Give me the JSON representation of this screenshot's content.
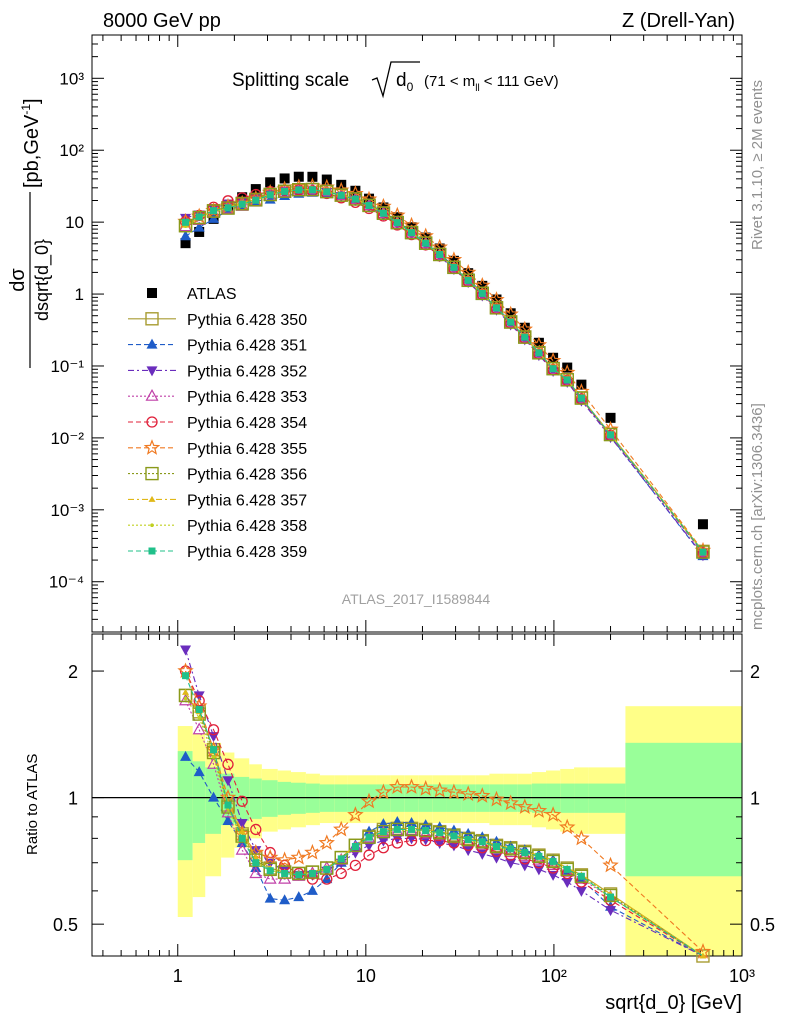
{
  "header": {
    "left": "8000 GeV pp",
    "right": "Z (Drell-Yan)"
  },
  "side": {
    "rivet": "Rivet 3.1.10, ≥ 2M events",
    "site": "mcplots.cern.ch [arXiv:1306.3436]"
  },
  "plot_title": {
    "main": "Splitting scale",
    "var": "d",
    "var_sub": "0",
    "cut_open": "(71 < m",
    "cut_sub": "ll",
    "cut_close": "< 111 GeV)"
  },
  "watermark": "ATLAS_2017_I1589844",
  "ylabel_top": {
    "num": "dσ",
    "den": "dsqrt{d_0}",
    "unit": "[pb,GeV",
    "unit_sup": "-1",
    "unit_close": "]"
  },
  "ylabel_bottom": "Ratio to ATLAS",
  "xlabel": "sqrt{d_0} [GeV]",
  "colors": {
    "data": "#000000",
    "band_inner": "#99ff99",
    "band_outer": "#ffff88"
  },
  "chart_data": [
    {
      "type": "scatter",
      "panel": "main",
      "x_scale": "log",
      "y_scale": "log",
      "xlim": [
        0.35,
        1000
      ],
      "ylim": [
        2e-05,
        4000
      ],
      "x_ticks": [
        "1",
        "10",
        "10²",
        "10³"
      ],
      "y_ticks": [
        "10⁻⁴",
        "10⁻³",
        "10⁻²",
        "10⁻¹",
        "1",
        "10",
        "10²",
        "10³"
      ],
      "legend_position": "center-left",
      "x": [
        1.1,
        1.3,
        1.55,
        1.85,
        2.2,
        2.6,
        3.1,
        3.7,
        4.4,
        5.2,
        6.2,
        7.4,
        8.8,
        10.4,
        12.4,
        14.7,
        17.5,
        20.8,
        24.7,
        29.4,
        35,
        41.6,
        49.5,
        58.9,
        70,
        83.2,
        99,
        117.7,
        140,
        200,
        620
      ],
      "series": [
        {
          "name": "ATLAS",
          "marker": "filled-square",
          "color": "#000000",
          "values": [
            5.1,
            7.3,
            11.1,
            16.5,
            22.2,
            28.8,
            35.8,
            40.5,
            42.8,
            42.7,
            39.1,
            33.0,
            27.3,
            21.2,
            16.0,
            11.7,
            8.5,
            6.1,
            4.3,
            2.9,
            1.95,
            1.3,
            0.84,
            0.54,
            0.34,
            0.21,
            0.13,
            0.095,
            0.055,
            0.019,
            0.00063
          ]
        },
        {
          "name": "Pythia 6.428 350",
          "marker": "open-square",
          "style": "solid",
          "color": "#a89c32",
          "ratio": [
            1.75,
            1.6,
            1.3,
            0.96,
            0.82,
            0.72,
            0.68,
            0.665,
            0.66,
            0.665,
            0.68,
            0.72,
            0.77,
            0.81,
            0.84,
            0.845,
            0.845,
            0.84,
            0.83,
            0.815,
            0.8,
            0.79,
            0.77,
            0.76,
            0.745,
            0.73,
            0.71,
            0.68,
            0.655,
            0.59,
            0.42
          ]
        },
        {
          "name": "Pythia 6.428 351",
          "marker": "filled-triangle-up",
          "style": "dashed",
          "color": "#1f5cc8",
          "ratio": [
            1.25,
            1.15,
            1.0,
            0.88,
            0.78,
            0.68,
            0.575,
            0.57,
            0.58,
            0.6,
            0.64,
            0.7,
            0.77,
            0.83,
            0.865,
            0.875,
            0.87,
            0.86,
            0.85,
            0.835,
            0.82,
            0.805,
            0.785,
            0.765,
            0.75,
            0.73,
            0.71,
            0.67,
            0.64,
            0.55,
            0.36
          ]
        },
        {
          "name": "Pythia 6.428 352",
          "marker": "filled-triangle-down",
          "style": "dash-dot",
          "color": "#6a2dbd",
          "ratio": [
            2.25,
            1.75,
            1.4,
            1.1,
            0.87,
            0.75,
            0.7,
            0.67,
            0.655,
            0.655,
            0.67,
            0.7,
            0.74,
            0.77,
            0.79,
            0.8,
            0.8,
            0.795,
            0.78,
            0.77,
            0.75,
            0.735,
            0.72,
            0.7,
            0.69,
            0.675,
            0.655,
            0.63,
            0.6,
            0.54,
            0.37
          ]
        },
        {
          "name": "Pythia 6.428 353",
          "marker": "open-triangle-up",
          "style": "dotted",
          "color": "#c040a8",
          "ratio": [
            1.7,
            1.45,
            1.2,
            0.92,
            0.75,
            0.66,
            0.64,
            0.64,
            0.65,
            0.66,
            0.68,
            0.71,
            0.76,
            0.8,
            0.825,
            0.83,
            0.83,
            0.82,
            0.81,
            0.8,
            0.785,
            0.77,
            0.755,
            0.74,
            0.725,
            0.71,
            0.69,
            0.665,
            0.64,
            0.58,
            0.41
          ]
        },
        {
          "name": "Pythia 6.428 354",
          "marker": "open-circle",
          "style": "dashed",
          "color": "#e0203a",
          "ratio": [
            2.0,
            1.7,
            1.45,
            1.2,
            0.98,
            0.84,
            0.74,
            0.69,
            0.66,
            0.64,
            0.64,
            0.66,
            0.69,
            0.73,
            0.76,
            0.78,
            0.79,
            0.79,
            0.79,
            0.78,
            0.77,
            0.76,
            0.745,
            0.73,
            0.715,
            0.7,
            0.68,
            0.66,
            0.63,
            0.57,
            0.4
          ]
        },
        {
          "name": "Pythia 6.428 355",
          "marker": "open-star",
          "style": "dashed",
          "color": "#f07a22",
          "ratio": [
            2.0,
            1.65,
            1.3,
            1.0,
            0.82,
            0.74,
            0.72,
            0.71,
            0.72,
            0.74,
            0.78,
            0.84,
            0.91,
            0.98,
            1.03,
            1.06,
            1.06,
            1.05,
            1.04,
            1.03,
            1.02,
            1.01,
            0.99,
            0.97,
            0.95,
            0.93,
            0.91,
            0.85,
            0.8,
            0.69,
            0.43
          ]
        },
        {
          "name": "Pythia 6.428 356",
          "marker": "open-square",
          "style": "dotted",
          "color": "#8a9a1a",
          "ratio": [
            1.75,
            1.58,
            1.28,
            0.95,
            0.81,
            0.71,
            0.675,
            0.665,
            0.66,
            0.665,
            0.68,
            0.72,
            0.77,
            0.805,
            0.83,
            0.84,
            0.84,
            0.835,
            0.825,
            0.81,
            0.795,
            0.785,
            0.765,
            0.755,
            0.74,
            0.725,
            0.705,
            0.675,
            0.65,
            0.585,
            0.41
          ]
        },
        {
          "name": "Pythia 6.428 357",
          "marker": "small-filled-triangle",
          "style": "dash-dot",
          "color": "#e0b818",
          "ratio": [
            1.78,
            1.6,
            1.3,
            0.97,
            0.83,
            0.72,
            0.68,
            0.665,
            0.66,
            0.665,
            0.68,
            0.72,
            0.77,
            0.81,
            0.835,
            0.845,
            0.845,
            0.84,
            0.83,
            0.815,
            0.8,
            0.79,
            0.77,
            0.76,
            0.745,
            0.73,
            0.71,
            0.68,
            0.655,
            0.59,
            0.42
          ]
        },
        {
          "name": "Pythia 6.428 358",
          "marker": "small-dot",
          "style": "dotted",
          "color": "#c0d020",
          "ratio": [
            1.72,
            1.55,
            1.25,
            0.94,
            0.8,
            0.705,
            0.67,
            0.66,
            0.655,
            0.66,
            0.675,
            0.715,
            0.765,
            0.8,
            0.825,
            0.835,
            0.835,
            0.83,
            0.82,
            0.805,
            0.79,
            0.78,
            0.76,
            0.75,
            0.735,
            0.72,
            0.7,
            0.67,
            0.645,
            0.58,
            0.41
          ]
        },
        {
          "name": "Pythia 6.428 359",
          "marker": "filled-square-small",
          "style": "dashed",
          "color": "#20c08a",
          "ratio": [
            1.95,
            1.62,
            1.3,
            0.96,
            0.8,
            0.7,
            0.67,
            0.66,
            0.655,
            0.66,
            0.675,
            0.715,
            0.765,
            0.805,
            0.83,
            0.84,
            0.84,
            0.835,
            0.825,
            0.81,
            0.795,
            0.785,
            0.765,
            0.755,
            0.74,
            0.725,
            0.705,
            0.675,
            0.65,
            0.58,
            0.41
          ]
        }
      ]
    },
    {
      "type": "line",
      "panel": "ratio",
      "x_scale": "log",
      "y_scale": "log",
      "xlim": [
        0.35,
        1000
      ],
      "ylim": [
        0.42,
        2.45
      ],
      "x_ticks": [
        "1",
        "10",
        "10²",
        "10³"
      ],
      "y_ticks": [
        "0.5",
        "1",
        "2"
      ],
      "ylabel": "Ratio to ATLAS",
      "xlabel": "sqrt{d_0} [GeV]",
      "reference_line": 1,
      "bins": [
        [
          1.0,
          1.2
        ],
        [
          1.2,
          1.4
        ],
        [
          1.4,
          1.7
        ],
        [
          1.7,
          2.0
        ],
        [
          2.0,
          2.4
        ],
        [
          2.4,
          2.8
        ],
        [
          2.8,
          3.4
        ],
        [
          3.4,
          4.0
        ],
        [
          4.0,
          4.8
        ],
        [
          4.8,
          5.7
        ],
        [
          5.7,
          6.8
        ],
        [
          6.8,
          8.0
        ],
        [
          8.0,
          9.6
        ],
        [
          9.6,
          11.4
        ],
        [
          11.4,
          13.5
        ],
        [
          13.5,
          16.1
        ],
        [
          16.1,
          19.1
        ],
        [
          19.1,
          22.7
        ],
        [
          22.7,
          27.0
        ],
        [
          27.0,
          32.1
        ],
        [
          32.1,
          38.2
        ],
        [
          38.2,
          45.4
        ],
        [
          45.4,
          54.0
        ],
        [
          54.0,
          64.2
        ],
        [
          64.2,
          76.3
        ],
        [
          76.3,
          90.8
        ],
        [
          90.8,
          108
        ],
        [
          108,
          128
        ],
        [
          128,
          152
        ],
        [
          152,
          240
        ],
        [
          240,
          1000
        ]
      ],
      "band_inner_half": [
        0.29,
        0.22,
        0.18,
        0.14,
        0.12,
        0.11,
        0.1,
        0.09,
        0.085,
        0.08,
        0.075,
        0.075,
        0.075,
        0.075,
        0.075,
        0.075,
        0.075,
        0.075,
        0.075,
        0.075,
        0.075,
        0.075,
        0.075,
        0.075,
        0.075,
        0.08,
        0.08,
        0.08,
        0.08,
        0.08,
        0.35
      ],
      "band_outer_half": [
        0.48,
        0.42,
        0.35,
        0.28,
        0.24,
        0.2,
        0.17,
        0.16,
        0.15,
        0.14,
        0.13,
        0.13,
        0.13,
        0.13,
        0.13,
        0.13,
        0.13,
        0.13,
        0.13,
        0.13,
        0.13,
        0.13,
        0.14,
        0.14,
        0.14,
        0.15,
        0.16,
        0.17,
        0.18,
        0.18,
        0.65
      ]
    }
  ]
}
